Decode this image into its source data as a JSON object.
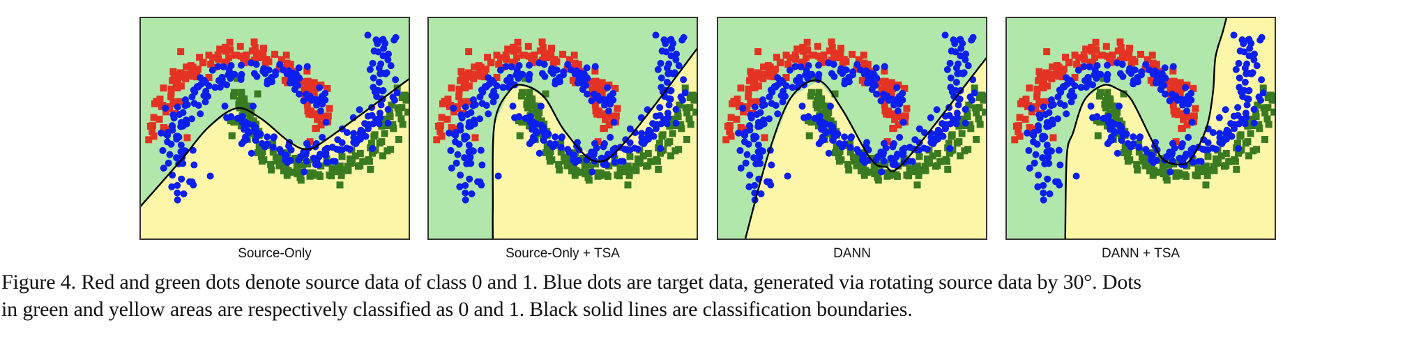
{
  "figure": {
    "caption_line1": "Figure 4. Red and green dots denote source data of class 0 and 1. Blue dots are target data, generated via rotating source data by 30°. Dots",
    "caption_line2": "in green and yellow areas are respectively classified as 0 and 1. Black solid lines are classification boundaries."
  },
  "colors": {
    "class0_area": "#b2e7ab",
    "class1_area": "#fcf6a9",
    "source_class0": "#e43323",
    "source_class1": "#3a7b22",
    "target": "#0b1ff0",
    "boundary": "#000000"
  },
  "chart_data": [
    {
      "type": "scatter",
      "title": "Source-Only",
      "xlim": [
        -1.25,
        2.1
      ],
      "ylim": [
        -1.4,
        1.5
      ],
      "rotation_deg": 30,
      "boundary": [
        [
          -1.25,
          -0.98
        ],
        [
          -0.74,
          -0.37
        ],
        [
          -0.4,
          0.06
        ],
        [
          -0.05,
          0.31
        ],
        [
          0.25,
          0.18
        ],
        [
          0.6,
          -0.12
        ],
        [
          0.83,
          -0.22
        ],
        [
          1.1,
          -0.07
        ],
        [
          2.1,
          0.7
        ]
      ]
    },
    {
      "type": "scatter",
      "title": "Source-Only + TSA",
      "xlim": [
        -1.25,
        2.1
      ],
      "ylim": [
        -1.4,
        1.5
      ],
      "rotation_deg": 30,
      "boundary": [
        [
          -0.44,
          -1.4
        ],
        [
          -0.44,
          -0.98
        ],
        [
          -0.42,
          0.11
        ],
        [
          -0.23,
          0.54
        ],
        [
          -0.06,
          0.61
        ],
        [
          0.2,
          0.45
        ],
        [
          0.46,
          0.0
        ],
        [
          0.84,
          -0.38
        ],
        [
          1.23,
          -0.09
        ],
        [
          2.1,
          1.1
        ]
      ]
    },
    {
      "type": "scatter",
      "title": "DANN",
      "xlim": [
        -1.25,
        2.1
      ],
      "ylim": [
        -1.4,
        1.5
      ],
      "rotation_deg": 30,
      "boundary": [
        [
          -0.9,
          -1.4
        ],
        [
          -0.61,
          -0.28
        ],
        [
          -0.33,
          0.45
        ],
        [
          0.01,
          0.67
        ],
        [
          0.3,
          0.3
        ],
        [
          0.65,
          -0.34
        ],
        [
          0.84,
          -0.45
        ],
        [
          1.07,
          -0.39
        ],
        [
          2.04,
          0.9
        ],
        [
          2.1,
          0.98
        ]
      ]
    },
    {
      "type": "scatter",
      "title": "DANN + TSA",
      "xlim": [
        -1.25,
        2.1
      ],
      "ylim": [
        -1.4,
        1.5
      ],
      "rotation_deg": 30,
      "boundary": [
        [
          -0.51,
          -1.4
        ],
        [
          -0.49,
          -0.3
        ],
        [
          -0.41,
          0.0
        ],
        [
          -0.27,
          0.42
        ],
        [
          -0.04,
          0.61
        ],
        [
          0.14,
          0.56
        ],
        [
          0.31,
          0.42
        ],
        [
          0.57,
          -0.12
        ],
        [
          0.71,
          -0.36
        ],
        [
          0.92,
          -0.42
        ],
        [
          1.06,
          -0.33
        ],
        [
          1.24,
          0.06
        ],
        [
          1.32,
          0.52
        ],
        [
          1.35,
          0.97
        ],
        [
          1.44,
          1.3
        ],
        [
          1.49,
          1.5
        ]
      ]
    }
  ]
}
